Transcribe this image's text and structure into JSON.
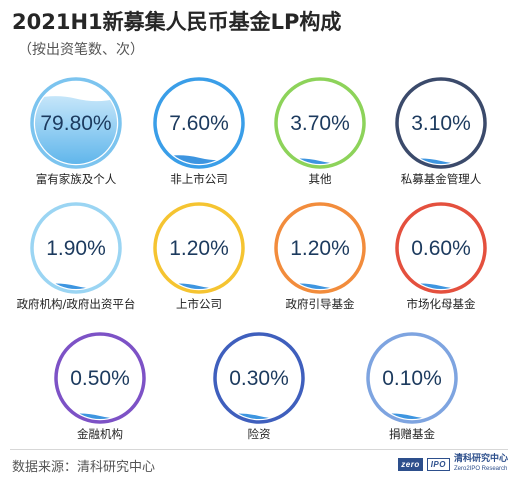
{
  "chart_data": {
    "type": "bubble",
    "title": "2021H1新募集人民币基金LP构成",
    "subtitle": "（按出资笔数、次）",
    "unit": "%",
    "categories": [
      "富有家族及个人",
      "非上市公司",
      "其他",
      "私募基金管理人",
      "政府机构/政府出资平台",
      "上市公司",
      "政府引导基金",
      "市场化母基金",
      "金融机构",
      "险资",
      "捐赠基金"
    ],
    "values": [
      79.8,
      7.6,
      3.7,
      3.1,
      1.9,
      1.2,
      1.2,
      0.6,
      0.5,
      0.3,
      0.1
    ],
    "value_labels": [
      "79.80%",
      "7.60%",
      "3.70%",
      "3.10%",
      "1.90%",
      "1.20%",
      "1.20%",
      "0.60%",
      "0.50%",
      "0.30%",
      "0.10%"
    ],
    "colors": [
      "#7cc4ef",
      "#3a9ee8",
      "#8dd35a",
      "#3b4a6b",
      "#9bd5f3",
      "#f5c431",
      "#f28c3c",
      "#e4503e",
      "#7d52c6",
      "#3f5fbd",
      "#7ea4e0"
    ]
  },
  "source": "数据来源：清科研究中心",
  "watermark": {
    "logo_left": "zero",
    "logo_right": "IPO",
    "name_cn": "清科研究中心",
    "name_en": "Zero2IPO Research"
  }
}
